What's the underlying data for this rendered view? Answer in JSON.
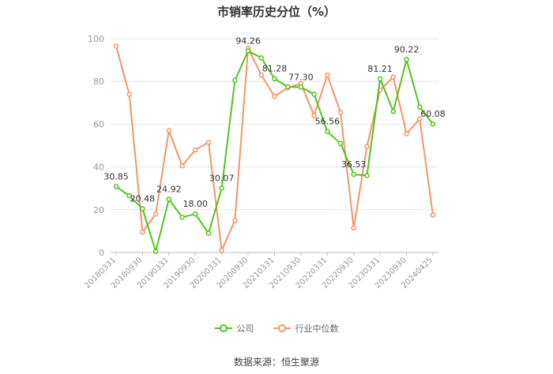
{
  "chart_data": {
    "type": "line",
    "title": "市销率历史分位（%）",
    "ylim": [
      0,
      100
    ],
    "yticks": [
      0,
      20,
      40,
      60,
      80,
      100
    ],
    "grid": true,
    "legend_position": "bottom",
    "x_tick_labels": [
      "20180331",
      "20180930",
      "20190331",
      "20190930",
      "20200331",
      "20200930",
      "20210331",
      "20210930",
      "20220331",
      "20220930",
      "20230331",
      "20230930",
      "20240425"
    ],
    "x": [
      "20180331",
      "20180630",
      "20180930",
      "20181231",
      "20190331",
      "20190630",
      "20190930",
      "20191231",
      "20200331",
      "20200630",
      "20200930",
      "20201231",
      "20210331",
      "20210630",
      "20210930",
      "20211231",
      "20220331",
      "20220630",
      "20220930",
      "20221231",
      "20230331",
      "20230630",
      "20230930",
      "20231231",
      "20240425"
    ],
    "series": [
      {
        "name": "公司",
        "color": "#52c41a",
        "values": [
          30.85,
          26.5,
          20.48,
          0.5,
          24.92,
          16.5,
          18.0,
          9.0,
          30.07,
          80.5,
          94.26,
          91.0,
          81.28,
          77.5,
          77.3,
          74.0,
          56.56,
          51.0,
          36.53,
          36.0,
          81.21,
          66.0,
          90.22,
          68.0,
          60.08
        ],
        "labels": {
          "0": "30.85",
          "2": "20.48",
          "4": "24.92",
          "6": "18.00",
          "8": "30.07",
          "10": "94.26",
          "12": "81.28",
          "14": "77.30",
          "16": "56.56",
          "18": "36.53",
          "20": "81.21",
          "22": "90.22",
          "24": "60.08"
        }
      },
      {
        "name": "行业中位数",
        "color": "#f4956a",
        "values": [
          96.5,
          74.0,
          9.5,
          18.0,
          57.0,
          40.5,
          48.0,
          51.5,
          1.0,
          15.0,
          95.5,
          83.0,
          73.0,
          77.0,
          79.0,
          64.0,
          83.0,
          65.5,
          11.5,
          49.5,
          76.0,
          82.0,
          55.5,
          62.5,
          17.5
        ]
      }
    ]
  },
  "legend": {
    "company_label": "公司",
    "industry_label": "行业中位数"
  },
  "footer": {
    "source": "数据来源：恒生聚源"
  }
}
